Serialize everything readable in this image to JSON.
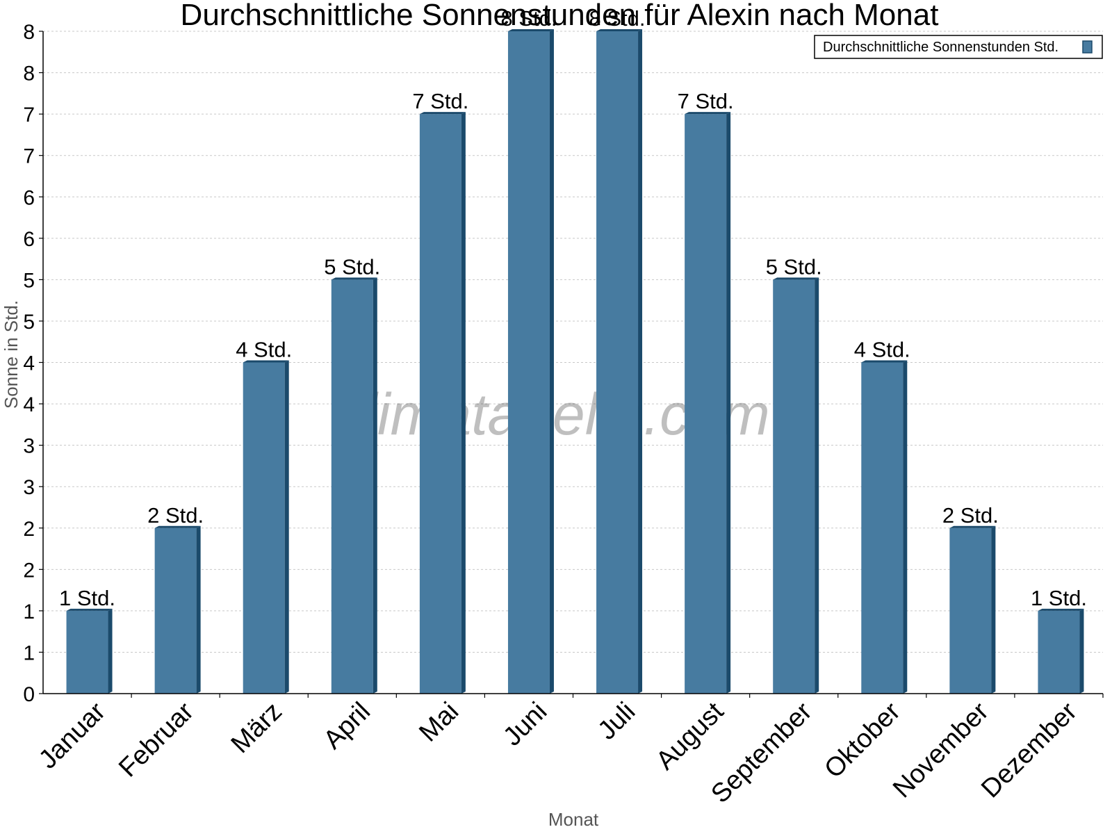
{
  "chart_data": {
    "type": "bar",
    "title": "Durchschnittliche Sonnenstunden für Alexin nach Monat",
    "xlabel": "Monat",
    "ylabel": "Sonne in Std.",
    "ylim": [
      0,
      8
    ],
    "y_tick_values": [
      0,
      0.5,
      1,
      1.5,
      2,
      2.5,
      3,
      3.5,
      4,
      4.5,
      5,
      5.5,
      6,
      6.5,
      7,
      7.5,
      8
    ],
    "y_tick_labels": [
      "0",
      "1",
      "1",
      "2",
      "2",
      "3",
      "3",
      "4",
      "4",
      "5",
      "5",
      "6",
      "6",
      "7",
      "7",
      "8",
      "8"
    ],
    "grid": true,
    "legend_position": "top-right",
    "categories": [
      "Januar",
      "Februar",
      "März",
      "April",
      "Mai",
      "Juni",
      "Juli",
      "August",
      "September",
      "Oktober",
      "November",
      "Dezember"
    ],
    "series": [
      {
        "name": "Durchschnittliche Sonnenstunden Std.",
        "color": "#477ba0",
        "values": [
          1,
          2,
          4,
          5,
          7,
          8,
          8,
          7,
          5,
          4,
          2,
          1
        ],
        "data_labels": [
          "1 Std.",
          "2 Std.",
          "4 Std.",
          "5 Std.",
          "7 Std.",
          "8 Std.",
          "8 Std.",
          "7 Std.",
          "5 Std.",
          "4 Std.",
          "2 Std.",
          "1 Std."
        ]
      }
    ],
    "watermark": "klimatabelle.com"
  }
}
